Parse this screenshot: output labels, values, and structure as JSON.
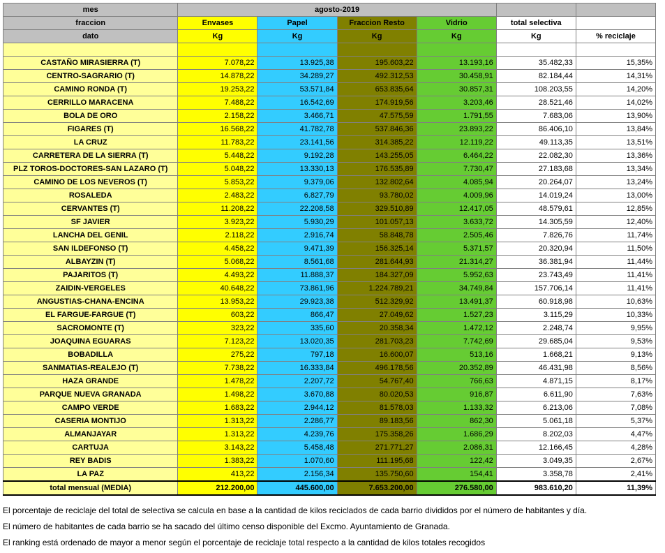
{
  "headers": {
    "mes": "mes",
    "month_value": "agosto-2019",
    "fraccion": "fraccion",
    "envases": "Envases",
    "papel": "Papel",
    "fraccion_resto": "Fraccion Resto",
    "vidrio": "Vidrio",
    "total_selectiva": "total selectiva",
    "dato": "dato",
    "kg": "Kg",
    "pct": "% reciclaje"
  },
  "rows": [
    {
      "name": "CASTAÑO MIRASIERRA (T)",
      "envases": "7.078,22",
      "papel": "13.925,38",
      "resto": "195.603,22",
      "vidrio": "13.193,16",
      "total": "35.482,33",
      "pct": "15,35%"
    },
    {
      "name": "CENTRO-SAGRARIO (T)",
      "envases": "14.878,22",
      "papel": "34.289,27",
      "resto": "492.312,53",
      "vidrio": "30.458,91",
      "total": "82.184,44",
      "pct": "14,31%"
    },
    {
      "name": "CAMINO RONDA (T)",
      "envases": "19.253,22",
      "papel": "53.571,84",
      "resto": "653.835,64",
      "vidrio": "30.857,31",
      "total": "108.203,55",
      "pct": "14,20%"
    },
    {
      "name": "CERRILLO MARACENA",
      "envases": "7.488,22",
      "papel": "16.542,69",
      "resto": "174.919,56",
      "vidrio": "3.203,46",
      "total": "28.521,46",
      "pct": "14,02%"
    },
    {
      "name": "BOLA DE ORO",
      "envases": "2.158,22",
      "papel": "3.466,71",
      "resto": "47.575,59",
      "vidrio": "1.791,55",
      "total": "7.683,06",
      "pct": "13,90%"
    },
    {
      "name": "FIGARES (T)",
      "envases": "16.568,22",
      "papel": "41.782,78",
      "resto": "537.846,36",
      "vidrio": "23.893,22",
      "total": "86.406,10",
      "pct": "13,84%"
    },
    {
      "name": "LA CRUZ",
      "envases": "11.783,22",
      "papel": "23.141,56",
      "resto": "314.385,22",
      "vidrio": "12.119,22",
      "total": "49.113,35",
      "pct": "13,51%"
    },
    {
      "name": "CARRETERA DE LA SIERRA (T)",
      "envases": "5.448,22",
      "papel": "9.192,28",
      "resto": "143.255,05",
      "vidrio": "6.464,22",
      "total": "22.082,30",
      "pct": "13,36%"
    },
    {
      "name": "PLZ TOROS-DOCTORES-SAN LAZARO (T)",
      "envases": "5.048,22",
      "papel": "13.330,13",
      "resto": "176.535,89",
      "vidrio": "7.730,47",
      "total": "27.183,68",
      "pct": "13,34%"
    },
    {
      "name": "CAMINO DE LOS NEVEROS (T)",
      "envases": "5.853,22",
      "papel": "9.379,06",
      "resto": "132.802,64",
      "vidrio": "4.085,94",
      "total": "20.264,07",
      "pct": "13,24%"
    },
    {
      "name": "ROSALEDA",
      "envases": "2.483,22",
      "papel": "6.827,79",
      "resto": "93.780,02",
      "vidrio": "4.009,96",
      "total": "14.019,24",
      "pct": "13,00%"
    },
    {
      "name": "CERVANTES (T)",
      "envases": "11.208,22",
      "papel": "22.208,58",
      "resto": "329.510,89",
      "vidrio": "12.417,05",
      "total": "48.579,61",
      "pct": "12,85%"
    },
    {
      "name": "SF JAVIER",
      "envases": "3.923,22",
      "papel": "5.930,29",
      "resto": "101.057,13",
      "vidrio": "3.633,72",
      "total": "14.305,59",
      "pct": "12,40%"
    },
    {
      "name": "LANCHA DEL GENIL",
      "envases": "2.118,22",
      "papel": "2.916,74",
      "resto": "58.848,78",
      "vidrio": "2.505,46",
      "total": "7.826,76",
      "pct": "11,74%"
    },
    {
      "name": "SAN ILDEFONSO (T)",
      "envases": "4.458,22",
      "papel": "9.471,39",
      "resto": "156.325,14",
      "vidrio": "5.371,57",
      "total": "20.320,94",
      "pct": "11,50%"
    },
    {
      "name": "ALBAYZIN (T)",
      "envases": "5.068,22",
      "papel": "8.561,68",
      "resto": "281.644,93",
      "vidrio": "21.314,27",
      "total": "36.381,94",
      "pct": "11,44%"
    },
    {
      "name": "PAJARITOS (T)",
      "envases": "4.493,22",
      "papel": "11.888,37",
      "resto": "184.327,09",
      "vidrio": "5.952,63",
      "total": "23.743,49",
      "pct": "11,41%"
    },
    {
      "name": "ZAIDIN-VERGELES",
      "envases": "40.648,22",
      "papel": "73.861,96",
      "resto": "1.224.789,21",
      "vidrio": "34.749,84",
      "total": "157.706,14",
      "pct": "11,41%"
    },
    {
      "name": "ANGUSTIAS-CHANA-ENCINA",
      "envases": "13.953,22",
      "papel": "29.923,38",
      "resto": "512.329,92",
      "vidrio": "13.491,37",
      "total": "60.918,98",
      "pct": "10,63%"
    },
    {
      "name": "EL FARGUE-FARGUE (T)",
      "envases": "603,22",
      "papel": "866,47",
      "resto": "27.049,62",
      "vidrio": "1.527,23",
      "total": "3.115,29",
      "pct": "10,33%"
    },
    {
      "name": "SACROMONTE (T)",
      "envases": "323,22",
      "papel": "335,60",
      "resto": "20.358,34",
      "vidrio": "1.472,12",
      "total": "2.248,74",
      "pct": "9,95%"
    },
    {
      "name": "JOAQUINA EGUARAS",
      "envases": "7.123,22",
      "papel": "13.020,35",
      "resto": "281.703,23",
      "vidrio": "7.742,69",
      "total": "29.685,04",
      "pct": "9,53%"
    },
    {
      "name": "BOBADILLA",
      "envases": "275,22",
      "papel": "797,18",
      "resto": "16.600,07",
      "vidrio": "513,16",
      "total": "1.668,21",
      "pct": "9,13%"
    },
    {
      "name": "SANMATIAS-REALEJO (T)",
      "envases": "7.738,22",
      "papel": "16.333,84",
      "resto": "496.178,56",
      "vidrio": "20.352,89",
      "total": "46.431,98",
      "pct": "8,56%"
    },
    {
      "name": "HAZA GRANDE",
      "envases": "1.478,22",
      "papel": "2.207,72",
      "resto": "54.767,40",
      "vidrio": "766,63",
      "total": "4.871,15",
      "pct": "8,17%"
    },
    {
      "name": "PARQUE NUEVA GRANADA",
      "envases": "1.498,22",
      "papel": "3.670,88",
      "resto": "80.020,53",
      "vidrio": "916,87",
      "total": "6.611,90",
      "pct": "7,63%"
    },
    {
      "name": "CAMPO VERDE",
      "envases": "1.683,22",
      "papel": "2.944,12",
      "resto": "81.578,03",
      "vidrio": "1.133,32",
      "total": "6.213,06",
      "pct": "7,08%"
    },
    {
      "name": "CASERIA MONTIJO",
      "envases": "1.313,22",
      "papel": "2.286,77",
      "resto": "89.183,56",
      "vidrio": "862,30",
      "total": "5.061,18",
      "pct": "5,37%"
    },
    {
      "name": "ALMANJAYAR",
      "envases": "1.313,22",
      "papel": "4.239,76",
      "resto": "175.358,26",
      "vidrio": "1.686,29",
      "total": "8.202,03",
      "pct": "4,47%"
    },
    {
      "name": "CARTUJA",
      "envases": "3.143,22",
      "papel": "5.458,48",
      "resto": "271.771,27",
      "vidrio": "2.086,31",
      "total": "12.166,45",
      "pct": "4,28%"
    },
    {
      "name": "REY BADIS",
      "envases": "1.383,22",
      "papel": "1.070,60",
      "resto": "111.195,68",
      "vidrio": "122,42",
      "total": "3.049,35",
      "pct": "2,67%"
    },
    {
      "name": "LA PAZ",
      "envases": "413,22",
      "papel": "2.156,34",
      "resto": "135.750,60",
      "vidrio": "154,41",
      "total": "3.358,78",
      "pct": "2,41%"
    }
  ],
  "totals": {
    "label": "total mensual (MEDIA)",
    "envases": "212.200,00",
    "papel": "445.600,00",
    "resto": "7.653.200,00",
    "vidrio": "276.580,00",
    "total": "983.610,20",
    "pct": "11,39%"
  },
  "notes": [
    "El porcentaje de reciclaje del total de selectiva se calcula en base a la cantidad de kilos reciclados de cada barrio divididos por el número de habitantes y día.",
    "El número de habitantes de cada barrio se ha sacado del último censo disponible del Excmo. Ayuntamiento de Granada.",
    "El ranking está ordenado de mayor a menor según el porcentaje de reciclaje total respecto a la cantidad de kilos totales recogidos"
  ]
}
